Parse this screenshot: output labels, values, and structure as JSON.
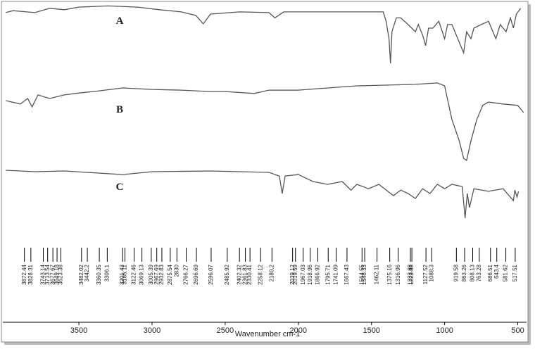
{
  "chart_data": {
    "type": "line",
    "xlabel": "Wavenumber cm-1",
    "xlim": [
      4020,
      440
    ],
    "xticks": [
      3500,
      3000,
      2500,
      2000,
      1500,
      1000,
      500
    ],
    "ylim": [
      0,
      100
    ],
    "series": [
      {
        "name": "A",
        "color": "#555555",
        "x": [
          4000,
          3950,
          3800,
          3700,
          3600,
          3500,
          3300,
          3100,
          2950,
          2800,
          2700,
          2650,
          2600,
          2400,
          2200,
          2160,
          2100,
          1900,
          1700,
          1500,
          1420,
          1400,
          1380,
          1370,
          1360,
          1330,
          1300,
          1250,
          1200,
          1180,
          1150,
          1130,
          1110,
          1080,
          1040,
          1000,
          980,
          950,
          900,
          870,
          850,
          820,
          800,
          750,
          700,
          680,
          650,
          620,
          580,
          550,
          530,
          510,
          480
        ],
        "values": [
          96.2,
          97,
          96.2,
          98,
          97.4,
          98.5,
          99,
          98.5,
          97.4,
          96.5,
          95,
          91.5,
          95.6,
          96.5,
          96.2,
          94,
          96.5,
          96.5,
          96.5,
          96.5,
          96.5,
          92.6,
          85.3,
          75,
          88.2,
          94,
          94,
          91.2,
          88.2,
          91.2,
          86.8,
          82.4,
          89.7,
          89.7,
          92.6,
          85.3,
          91.2,
          91.2,
          83.8,
          79.4,
          88.2,
          85.3,
          89.7,
          91.2,
          92.6,
          89.7,
          85.3,
          91.2,
          88.2,
          94,
          89.7,
          95.6,
          98
        ]
      },
      {
        "name": "B",
        "color": "#555555",
        "x": [
          4000,
          3900,
          3850,
          3820,
          3780,
          3700,
          3600,
          3500,
          3400,
          3200,
          3000,
          2800,
          2600,
          2500,
          2300,
          2200,
          2000,
          1800,
          1600,
          1200,
          1050,
          1000,
          950,
          900,
          870,
          850,
          820,
          780,
          740,
          700,
          600,
          500,
          460
        ],
        "values": [
          59.4,
          58,
          60.3,
          56.8,
          61.8,
          60.3,
          61.8,
          62.6,
          63.2,
          64.7,
          64.1,
          63.8,
          63.2,
          63.2,
          62.4,
          63.8,
          63.8,
          64.7,
          65.6,
          66.2,
          66.8,
          65.6,
          51.5,
          42.6,
          35.3,
          34.4,
          42.6,
          51.5,
          57.4,
          58.8,
          58,
          57.4,
          54.4
        ]
      },
      {
        "name": "C",
        "color": "#555555",
        "x": [
          4000,
          3800,
          3600,
          3200,
          3000,
          2600,
          2200,
          2130,
          2110,
          2090,
          2000,
          1900,
          1800,
          1700,
          1640,
          1600,
          1520,
          1450,
          1350,
          1300,
          1250,
          1200,
          1150,
          1100,
          1050,
          1000,
          950,
          880,
          860,
          845,
          830,
          800,
          700,
          600,
          530,
          520,
          505,
          495
        ],
        "values": [
          30.3,
          29.7,
          30,
          28.5,
          29.7,
          30,
          29.4,
          27.9,
          20.6,
          27.9,
          28.5,
          25.6,
          24.4,
          25.6,
          22,
          24.4,
          22.6,
          24.4,
          19.7,
          22,
          20.6,
          18.5,
          22.6,
          20.6,
          24.4,
          22.6,
          24.4,
          23.5,
          10.3,
          20.6,
          14.7,
          22.6,
          21.5,
          22.6,
          17.6,
          22,
          19.1,
          21.5
        ]
      }
    ],
    "peaks": [
      3872.44,
      3828.31,
      3743.14,
      3713.54,
      3677.67,
      3649.18,
      3623.38,
      3482.02,
      3442.2,
      3360.35,
      3306.1,
      3201.43,
      3185.11,
      3122.46,
      3069.13,
      3005.39,
      2967.69,
      2932.83,
      2875.54,
      2830.0,
      2766.27,
      2696.69,
      2596.07,
      2485.92,
      2402.32,
      2361.83,
      2330.41,
      2258.12,
      2180.2,
      2039.12,
      2019.59,
      1967.03,
      1918.96,
      1866.92,
      1795.71,
      1741.09,
      1667.43,
      1564.55,
      1546.33,
      1462.11,
      1375.16,
      1316.96,
      1233.88,
      1223.88,
      1127.52,
      1088.3,
      919.58,
      863.26,
      808.13,
      763.28,
      686.51,
      643.4,
      581.62,
      517.51
    ]
  }
}
